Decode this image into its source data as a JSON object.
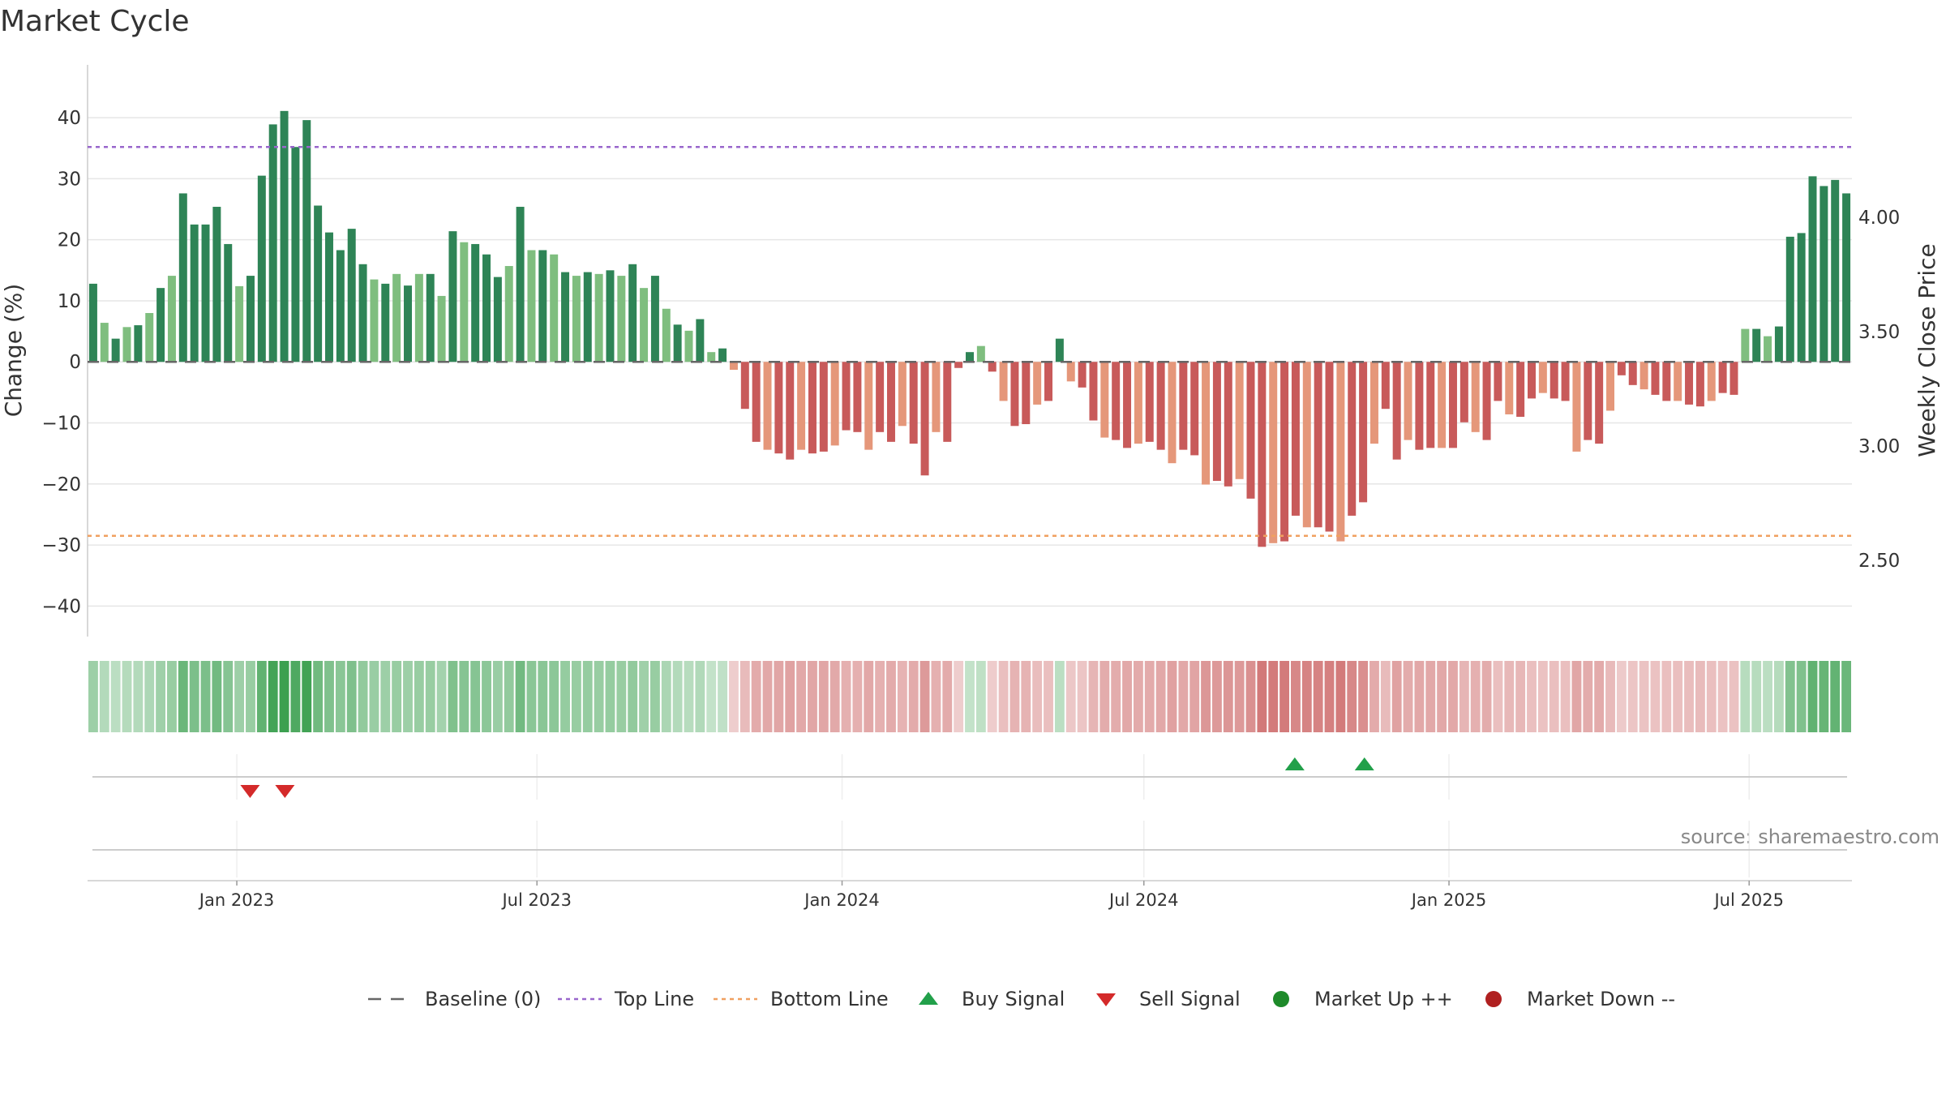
{
  "chart_data": {
    "type": "bar",
    "title": "Market Cycle",
    "ylabel_left": "Change (%)",
    "ylabel_right": "Weekly Close Price",
    "ylim": [
      -45,
      44
    ],
    "yticks": [
      40,
      30,
      20,
      10,
      0,
      -10,
      -20,
      -30,
      -40
    ],
    "ytick_labels": [
      "40",
      "30",
      "20",
      "10",
      "0",
      "−10",
      "−20",
      "−30",
      "−40"
    ],
    "right_ylim": [
      2.1667,
      4.5417
    ],
    "right_ticks": [
      2.5,
      3.0,
      3.5,
      4.0
    ],
    "right_tick_labels": [
      "2.50",
      "3.00",
      "3.50",
      "4.00"
    ],
    "x_start": "2022-10-03",
    "x_end": "2025-09-01",
    "x_ticks": [
      "2023-01-01",
      "2023-07-01",
      "2024-01-01",
      "2024-07-01",
      "2025-01-01",
      "2025-07-01"
    ],
    "x_tick_labels": [
      "Jan 2023",
      "Jul 2023",
      "Jan 2024",
      "Jul 2024",
      "Jan 2025",
      "Jul 2025"
    ],
    "weekly_change_pct": [
      12.8,
      6.4,
      3.8,
      5.7,
      6.0,
      8.0,
      12.1,
      14.1,
      27.6,
      22.5,
      22.5,
      25.4,
      19.3,
      12.4,
      14.1,
      30.5,
      38.9,
      41.1,
      35.2,
      39.6,
      25.6,
      21.2,
      18.3,
      21.8,
      16.0,
      13.5,
      12.8,
      14.4,
      12.5,
      14.4,
      14.4,
      10.8,
      21.4,
      19.6,
      19.3,
      17.6,
      13.9,
      15.7,
      25.4,
      18.3,
      18.3,
      17.6,
      14.7,
      14.1,
      14.7,
      14.4,
      15.0,
      14.1,
      16.0,
      12.1,
      14.1,
      8.7,
      6.1,
      5.1,
      7.0,
      1.6,
      2.2,
      -1.3,
      -7.7,
      -13.1,
      -14.4,
      -15.0,
      -16.0,
      -14.4,
      -15.0,
      -14.7,
      -13.7,
      -11.2,
      -11.5,
      -14.4,
      -11.5,
      -13.1,
      -10.5,
      -13.4,
      -18.6,
      -11.5,
      -13.1,
      -1.0,
      1.6,
      2.6,
      -1.6,
      -6.4,
      -10.5,
      -10.2,
      -7.0,
      -6.4,
      3.8,
      -3.2,
      -4.2,
      -9.6,
      -12.4,
      -12.8,
      -14.1,
      -13.4,
      -13.1,
      -14.4,
      -16.6,
      -14.4,
      -15.3,
      -20.1,
      -19.5,
      -20.4,
      -19.2,
      -22.4,
      -30.3,
      -29.7,
      -29.4,
      -25.2,
      -27.1,
      -27.1,
      -27.8,
      -29.4,
      -25.2,
      -23.0,
      -13.4,
      -7.7,
      -16.0,
      -12.8,
      -14.4,
      -14.1,
      -14.1,
      -14.1,
      -9.9,
      -11.5,
      -12.8,
      -6.4,
      -8.6,
      -9.0,
      -6.0,
      -5.1,
      -6.0,
      -6.4,
      -14.7,
      -12.8,
      -13.4,
      -8.0,
      -2.2,
      -3.8,
      -4.5,
      -5.4,
      -6.4,
      -6.4,
      -7.0,
      -7.3,
      -6.4,
      -5.1,
      -5.4,
      5.4,
      5.4,
      4.2,
      5.8,
      20.5,
      21.1,
      30.4,
      28.8,
      29.8,
      27.6
    ],
    "baseline": 0,
    "top_line": 35.2,
    "bottom_line": -28.5,
    "buy_signals": [
      "2024-09-30",
      "2024-11-11"
    ],
    "sell_signals": [
      "2023-01-09",
      "2023-01-30"
    ],
    "legend": [
      "Baseline (0)",
      "Top Line",
      "Bottom Line",
      "Buy Signal",
      "Sell Signal",
      "Market Up ++",
      "Market Down --"
    ],
    "legend_placement": "bottom-center",
    "grid": true,
    "source": "source: sharemaestro.com"
  },
  "colors": {
    "up_strong": "#2e8456",
    "up_light": "#7fbe7f",
    "down_strong": "#c85a5a",
    "down_light": "#e5977a",
    "top_line": "#9966cc",
    "bottom_line": "#f0a060",
    "buy": "#22a04a",
    "sell": "#d42a2a",
    "market_up": "#1e8a2a",
    "market_down": "#b02020",
    "baseline": "#666666",
    "grid": "#e6e6e6"
  }
}
